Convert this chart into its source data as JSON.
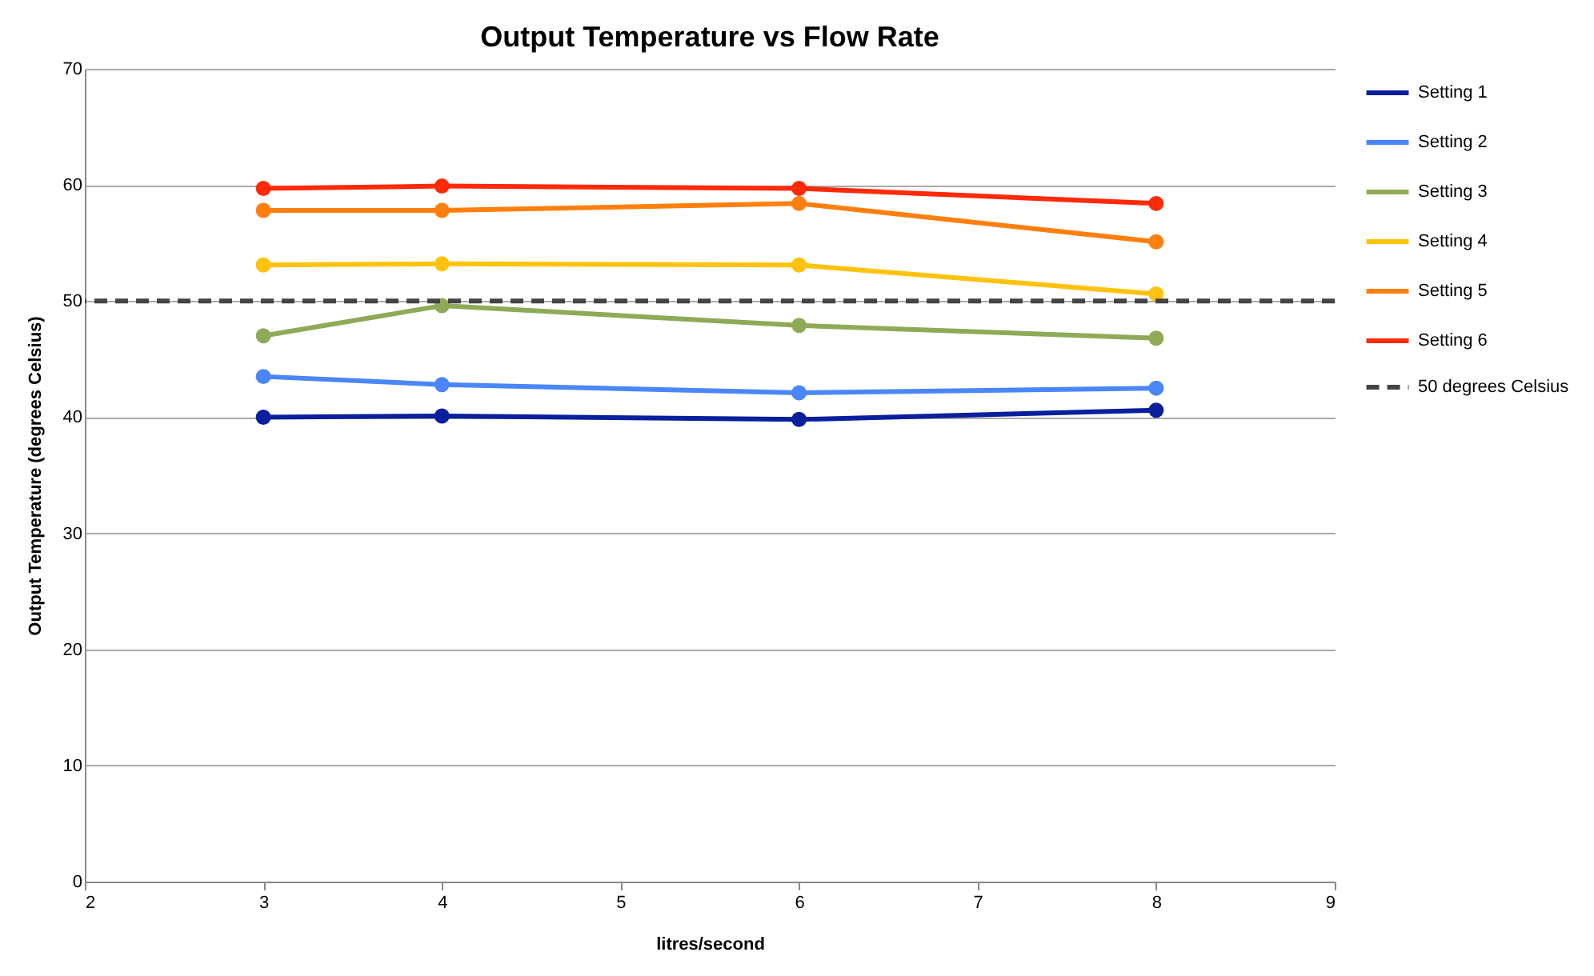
{
  "chart_data": {
    "type": "line",
    "title": "Output Temperature vs Flow Rate",
    "xlabel": "litres/second",
    "ylabel": "Output Temperature (degrees Celsius)",
    "x": [
      3,
      4,
      6,
      8
    ],
    "series": [
      {
        "name": "Setting 1",
        "color": "#0a1f9c",
        "values": [
          40.0,
          40.1,
          39.8,
          40.6
        ]
      },
      {
        "name": "Setting 2",
        "color": "#4a86f7",
        "values": [
          43.5,
          42.8,
          42.1,
          42.5
        ]
      },
      {
        "name": "Setting 3",
        "color": "#8faa57",
        "values": [
          47.0,
          49.6,
          47.9,
          46.8
        ]
      },
      {
        "name": "Setting 4",
        "color": "#ffc20e",
        "values": [
          53.1,
          53.2,
          53.1,
          50.6
        ]
      },
      {
        "name": "Setting 5",
        "color": "#ff7f0e",
        "values": [
          57.8,
          57.8,
          58.4,
          55.1
        ]
      },
      {
        "name": "Setting 6",
        "color": "#ff2a0a",
        "values": [
          59.7,
          59.9,
          59.7,
          58.4
        ]
      }
    ],
    "ref_lines": [
      {
        "axis": "y",
        "value": 50,
        "label": "50 degrees Celsius",
        "color": "#444444",
        "line_style": "dashed"
      }
    ],
    "xlim": [
      2,
      9
    ],
    "xticks": [
      2,
      3,
      4,
      5,
      6,
      7,
      8,
      9
    ],
    "ylim": [
      0,
      70
    ],
    "yticks": [
      0,
      10,
      20,
      30,
      40,
      50,
      60,
      70
    ],
    "grid": "y",
    "legend": "right",
    "marker": "circle",
    "line_style": "solid"
  }
}
